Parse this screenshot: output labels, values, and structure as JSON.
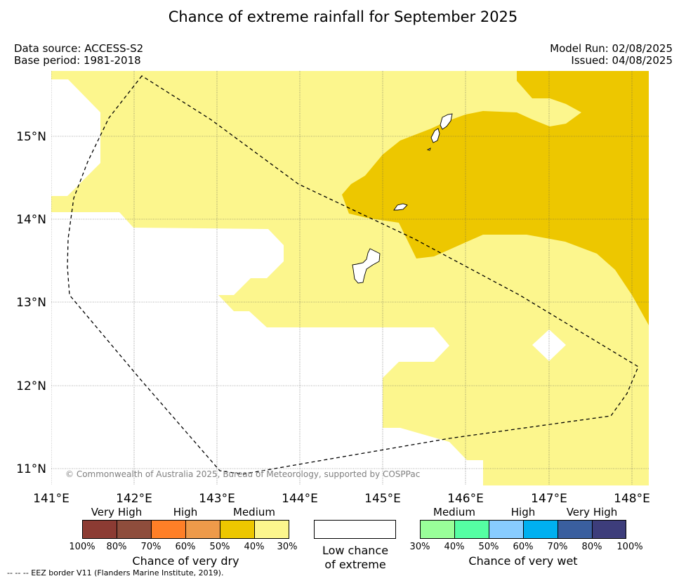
{
  "title": "Chance of extreme rainfall for September 2025",
  "data_source": "Data source: ACCESS-S2",
  "base_period": "Base period: 1981-2018",
  "model_run": "Model Run: 02/08/2025",
  "issued": "Issued: 04/08/2025",
  "map": {
    "lon_labels": [
      "141°E",
      "142°E",
      "143°E",
      "144°E",
      "145°E",
      "146°E",
      "147°E",
      "148°E"
    ],
    "lat_labels": [
      "15°N",
      "14°N",
      "13°N",
      "12°N",
      "11°N"
    ],
    "copyright": "© Commonwealth of Australia 2025, Bureau of Meteorology, supported by COSPPac",
    "colors": {
      "medium_dry_30_40": "#fcf68d",
      "medium_dry_40_50": "#edc700",
      "low": "#ffffff"
    }
  },
  "legend": {
    "dry": {
      "headers": [
        "Very High",
        "High",
        "Medium"
      ],
      "ticks": [
        "100%",
        "80%",
        "70%",
        "60%",
        "50%",
        "40%",
        "30%"
      ],
      "colors": [
        "#8c3b33",
        "#8e4d3c",
        "#ff7f27",
        "#ee9a4a",
        "#edc700",
        "#fcf68d"
      ],
      "title": "Chance of very dry"
    },
    "low_chance": {
      "line1": "Low chance",
      "line2": "of extreme"
    },
    "wet": {
      "headers": [
        "Medium",
        "High",
        "Very High"
      ],
      "ticks": [
        "30%",
        "40%",
        "50%",
        "60%",
        "70%",
        "80%",
        "100%"
      ],
      "colors": [
        "#99ff99",
        "#55ffa3",
        "#88ccff",
        "#00b0f0",
        "#3a5f9f",
        "#3d3d7b"
      ],
      "title": "Chance of very wet"
    }
  },
  "footnote": "--  --  -- EEZ border V11 (Flanders Marine Institute, 2019)."
}
